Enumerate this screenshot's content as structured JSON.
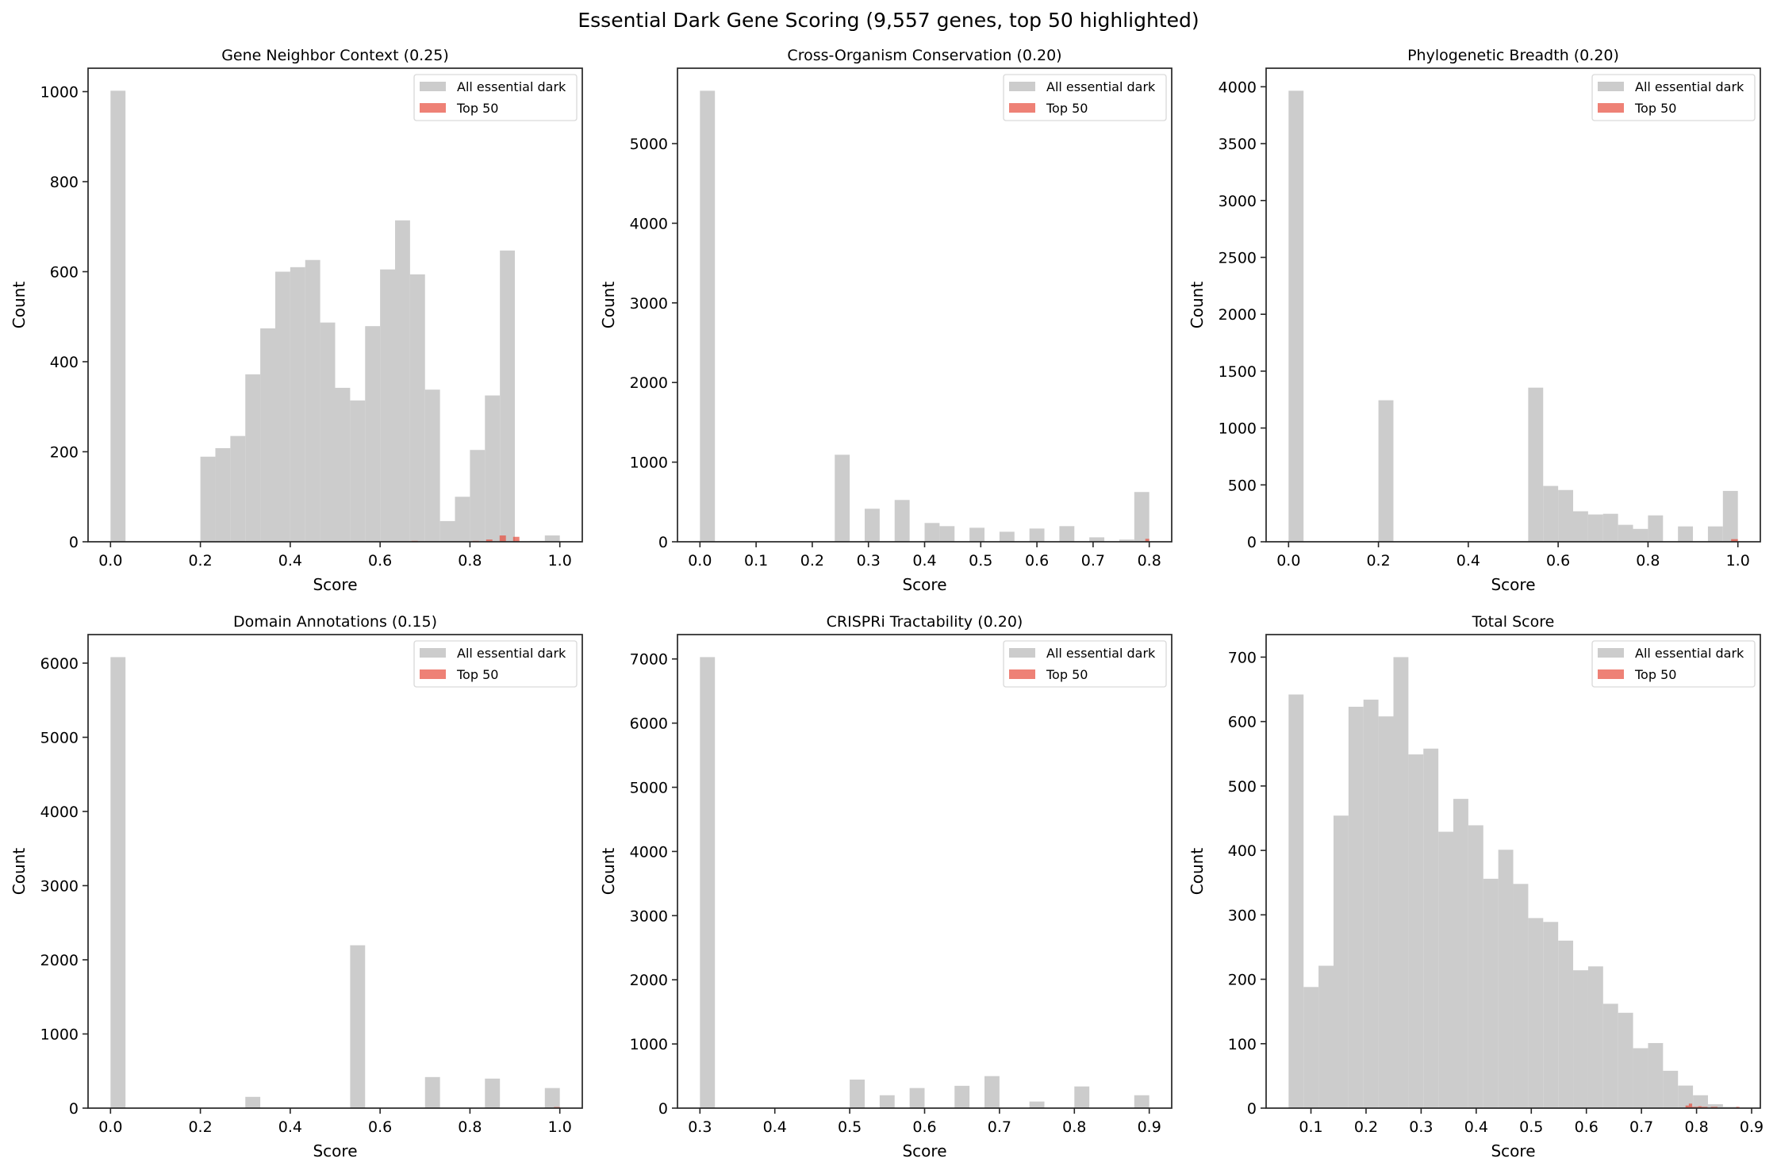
{
  "figure": {
    "suptitle": "Essential Dark Gene Scoring (9,557 genes, top 50 highlighted)",
    "colors": {
      "all": "#cccccc",
      "top50": "#e74c3c",
      "top50_alpha": 0.7,
      "spine": "#262626"
    }
  },
  "chart_data": [
    {
      "type": "bar",
      "title": "Gene Neighbor Context (0.25)",
      "xlabel": "Score",
      "ylabel": "Count",
      "xlim": [
        -0.05,
        1.05
      ],
      "ylim": [
        0,
        1052
      ],
      "xticks": [
        0,
        0.2,
        0.4,
        0.6,
        0.8,
        1.0
      ],
      "xtick_labels": [
        "0.0",
        "0.2",
        "0.4",
        "0.6",
        "0.8",
        "1.0"
      ],
      "yticks": [
        0,
        200,
        400,
        600,
        800,
        1000
      ],
      "ytick_labels": [
        "0",
        "200",
        "400",
        "600",
        "800",
        "1000"
      ],
      "legend": [
        "All essential dark",
        "Top 50"
      ],
      "legend_position": "top-right",
      "series": [
        {
          "name": "All essential dark",
          "bin_start": 0,
          "bin_width": 0.033333,
          "counts": [
            1002,
            0,
            0,
            0,
            0,
            0,
            189,
            208,
            235,
            372,
            474,
            600,
            610,
            626,
            487,
            342,
            314,
            479,
            605,
            714,
            594,
            338,
            46,
            100,
            204,
            325,
            647,
            0,
            2,
            14
          ]
        },
        {
          "name": "Top 50",
          "bins": [
            [
              0.67,
              0.684,
              2
            ],
            [
              0.806,
              0.82,
              2
            ],
            [
              0.836,
              0.85,
              5
            ],
            [
              0.866,
              0.88,
              14
            ],
            [
              0.896,
              0.91,
              11
            ]
          ]
        }
      ]
    },
    {
      "type": "bar",
      "title": "Cross-Organism Conservation (0.20)",
      "xlabel": "Score",
      "ylabel": "Count",
      "xlim": [
        -0.04,
        0.84
      ],
      "ylim": [
        0,
        5947
      ],
      "xticks": [
        0,
        0.1,
        0.2,
        0.3,
        0.4,
        0.5,
        0.6,
        0.7,
        0.8
      ],
      "xtick_labels": [
        "0.0",
        "0.1",
        "0.2",
        "0.3",
        "0.4",
        "0.5",
        "0.6",
        "0.7",
        "0.8"
      ],
      "yticks": [
        0,
        1000,
        2000,
        3000,
        4000,
        5000
      ],
      "ytick_labels": [
        "0",
        "1000",
        "2000",
        "3000",
        "4000",
        "5000"
      ],
      "legend": [
        "All essential dark",
        "Top 50"
      ],
      "legend_position": "top-right",
      "series": [
        {
          "name": "All essential dark",
          "bin_start": 0,
          "bin_width": 0.026667,
          "counts": [
            5664,
            0,
            0,
            0,
            0,
            0,
            0,
            0,
            0,
            1093,
            0,
            415,
            0,
            525,
            0,
            236,
            196,
            0,
            176,
            0,
            126,
            0,
            166,
            0,
            196,
            0,
            56,
            0,
            27,
            625
          ]
        },
        {
          "name": "Top 50",
          "bins": [
            [
              0.793,
              0.8,
              37
            ]
          ]
        }
      ]
    },
    {
      "type": "bar",
      "title": "Phylogenetic Breadth (0.20)",
      "xlabel": "Score",
      "ylabel": "Count",
      "xlim": [
        -0.05,
        1.05
      ],
      "ylim": [
        0,
        4163
      ],
      "xticks": [
        0,
        0.2,
        0.4,
        0.6,
        0.8,
        1.0
      ],
      "xtick_labels": [
        "0.0",
        "0.2",
        "0.4",
        "0.6",
        "0.8",
        "1.0"
      ],
      "yticks": [
        0,
        500,
        1000,
        1500,
        2000,
        2500,
        3000,
        3500,
        4000
      ],
      "ytick_labels": [
        "0",
        "500",
        "1000",
        "1500",
        "2000",
        "2500",
        "3000",
        "3500",
        "4000"
      ],
      "legend": [
        "All essential dark",
        "Top 50"
      ],
      "legend_position": "top-right",
      "series": [
        {
          "name": "All essential dark",
          "bin_start": 0,
          "bin_width": 0.033333,
          "counts": [
            3965,
            0,
            0,
            0,
            0,
            0,
            1244,
            0,
            0,
            0,
            0,
            0,
            0,
            0,
            0,
            0,
            1355,
            491,
            455,
            268,
            240,
            246,
            149,
            113,
            232,
            0,
            135,
            0,
            135,
            447
          ]
        },
        {
          "name": "Top 50",
          "bins": [
            [
              0.8,
              0.815,
              1
            ],
            [
              0.93,
              0.945,
              1
            ],
            [
              0.985,
              1.0,
              23
            ]
          ]
        }
      ]
    },
    {
      "type": "bar",
      "title": "Domain Annotations (0.15)",
      "xlabel": "Score",
      "ylabel": "Count",
      "xlim": [
        -0.05,
        1.05
      ],
      "ylim": [
        0,
        6385
      ],
      "xticks": [
        0,
        0.2,
        0.4,
        0.6,
        0.8,
        1.0
      ],
      "xtick_labels": [
        "0.0",
        "0.2",
        "0.4",
        "0.6",
        "0.8",
        "1.0"
      ],
      "yticks": [
        0,
        1000,
        2000,
        3000,
        4000,
        5000,
        6000
      ],
      "ytick_labels": [
        "0",
        "1000",
        "2000",
        "3000",
        "4000",
        "5000",
        "6000"
      ],
      "legend": [
        "All essential dark",
        "Top 50"
      ],
      "legend_position": "top-right",
      "series": [
        {
          "name": "All essential dark",
          "bin_start": 0,
          "bin_width": 0.033333,
          "counts": [
            6081,
            0,
            0,
            0,
            0,
            0,
            0,
            0,
            0,
            152,
            0,
            0,
            0,
            0,
            0,
            0,
            2196,
            0,
            0,
            0,
            0,
            419,
            0,
            0,
            0,
            398,
            0,
            0,
            0,
            271
          ]
        },
        {
          "name": "Top 50",
          "bins": [
            [
              0.987,
              1.0,
              15
            ]
          ]
        }
      ]
    },
    {
      "type": "bar",
      "title": "CRISPRi Tractability (0.20)",
      "xlabel": "Score",
      "ylabel": "Count",
      "xlim": [
        0.27,
        0.93
      ],
      "ylim": [
        0,
        7380
      ],
      "xticks": [
        0.3,
        0.4,
        0.5,
        0.6,
        0.7,
        0.8,
        0.9
      ],
      "xtick_labels": [
        "0.3",
        "0.4",
        "0.5",
        "0.6",
        "0.7",
        "0.8",
        "0.9"
      ],
      "yticks": [
        0,
        1000,
        2000,
        3000,
        4000,
        5000,
        6000,
        7000
      ],
      "ytick_labels": [
        "0",
        "1000",
        "2000",
        "3000",
        "4000",
        "5000",
        "6000",
        "7000"
      ],
      "legend": [
        "All essential dark",
        "Top 50"
      ],
      "legend_position": "top-right",
      "series": [
        {
          "name": "All essential dark",
          "bin_start": 0.3,
          "bin_width": 0.02,
          "counts": [
            7029,
            0,
            0,
            0,
            0,
            0,
            0,
            0,
            0,
            0,
            445,
            0,
            201,
            0,
            313,
            0,
            0,
            348,
            0,
            499,
            0,
            0,
            103,
            0,
            0,
            338,
            0,
            0,
            0,
            201
          ]
        },
        {
          "name": "Top 50",
          "bins": []
        }
      ]
    },
    {
      "type": "bar",
      "title": "Total Score",
      "xlabel": "Score",
      "ylabel": "Count",
      "xlim": [
        0.0186,
        0.9158
      ],
      "ylim": [
        0,
        735
      ],
      "xticks": [
        0.1,
        0.2,
        0.3,
        0.4,
        0.5,
        0.6,
        0.7,
        0.8,
        0.9
      ],
      "xtick_labels": [
        "0.1",
        "0.2",
        "0.3",
        "0.4",
        "0.5",
        "0.6",
        "0.7",
        "0.8",
        "0.9"
      ],
      "yticks": [
        0,
        100,
        200,
        300,
        400,
        500,
        600,
        700
      ],
      "ytick_labels": [
        "0",
        "100",
        "200",
        "300",
        "400",
        "500",
        "600",
        "700"
      ],
      "legend": [
        "All essential dark",
        "Top 50"
      ],
      "legend_position": "top-right",
      "series": [
        {
          "name": "All essential dark",
          "bin_start": 0.0594,
          "bin_width": 0.02719,
          "counts": [
            642,
            188,
            221,
            454,
            623,
            634,
            608,
            700,
            549,
            558,
            429,
            480,
            439,
            356,
            401,
            348,
            295,
            289,
            260,
            214,
            220,
            162,
            148,
            93,
            101,
            58,
            35,
            20,
            6,
            2
          ]
        },
        {
          "name": "Top 50",
          "bins": [
            [
              0.78,
              0.786,
              4
            ],
            [
              0.786,
              0.792,
              7
            ],
            [
              0.792,
              0.797,
              2
            ],
            [
              0.797,
              0.803,
              2
            ],
            [
              0.803,
              0.809,
              3
            ],
            [
              0.809,
              0.815,
              2
            ],
            [
              0.815,
              0.82,
              2
            ],
            [
              0.826,
              0.832,
              2
            ],
            [
              0.832,
              0.838,
              2
            ],
            [
              0.872,
              0.878,
              2
            ]
          ]
        }
      ]
    }
  ]
}
